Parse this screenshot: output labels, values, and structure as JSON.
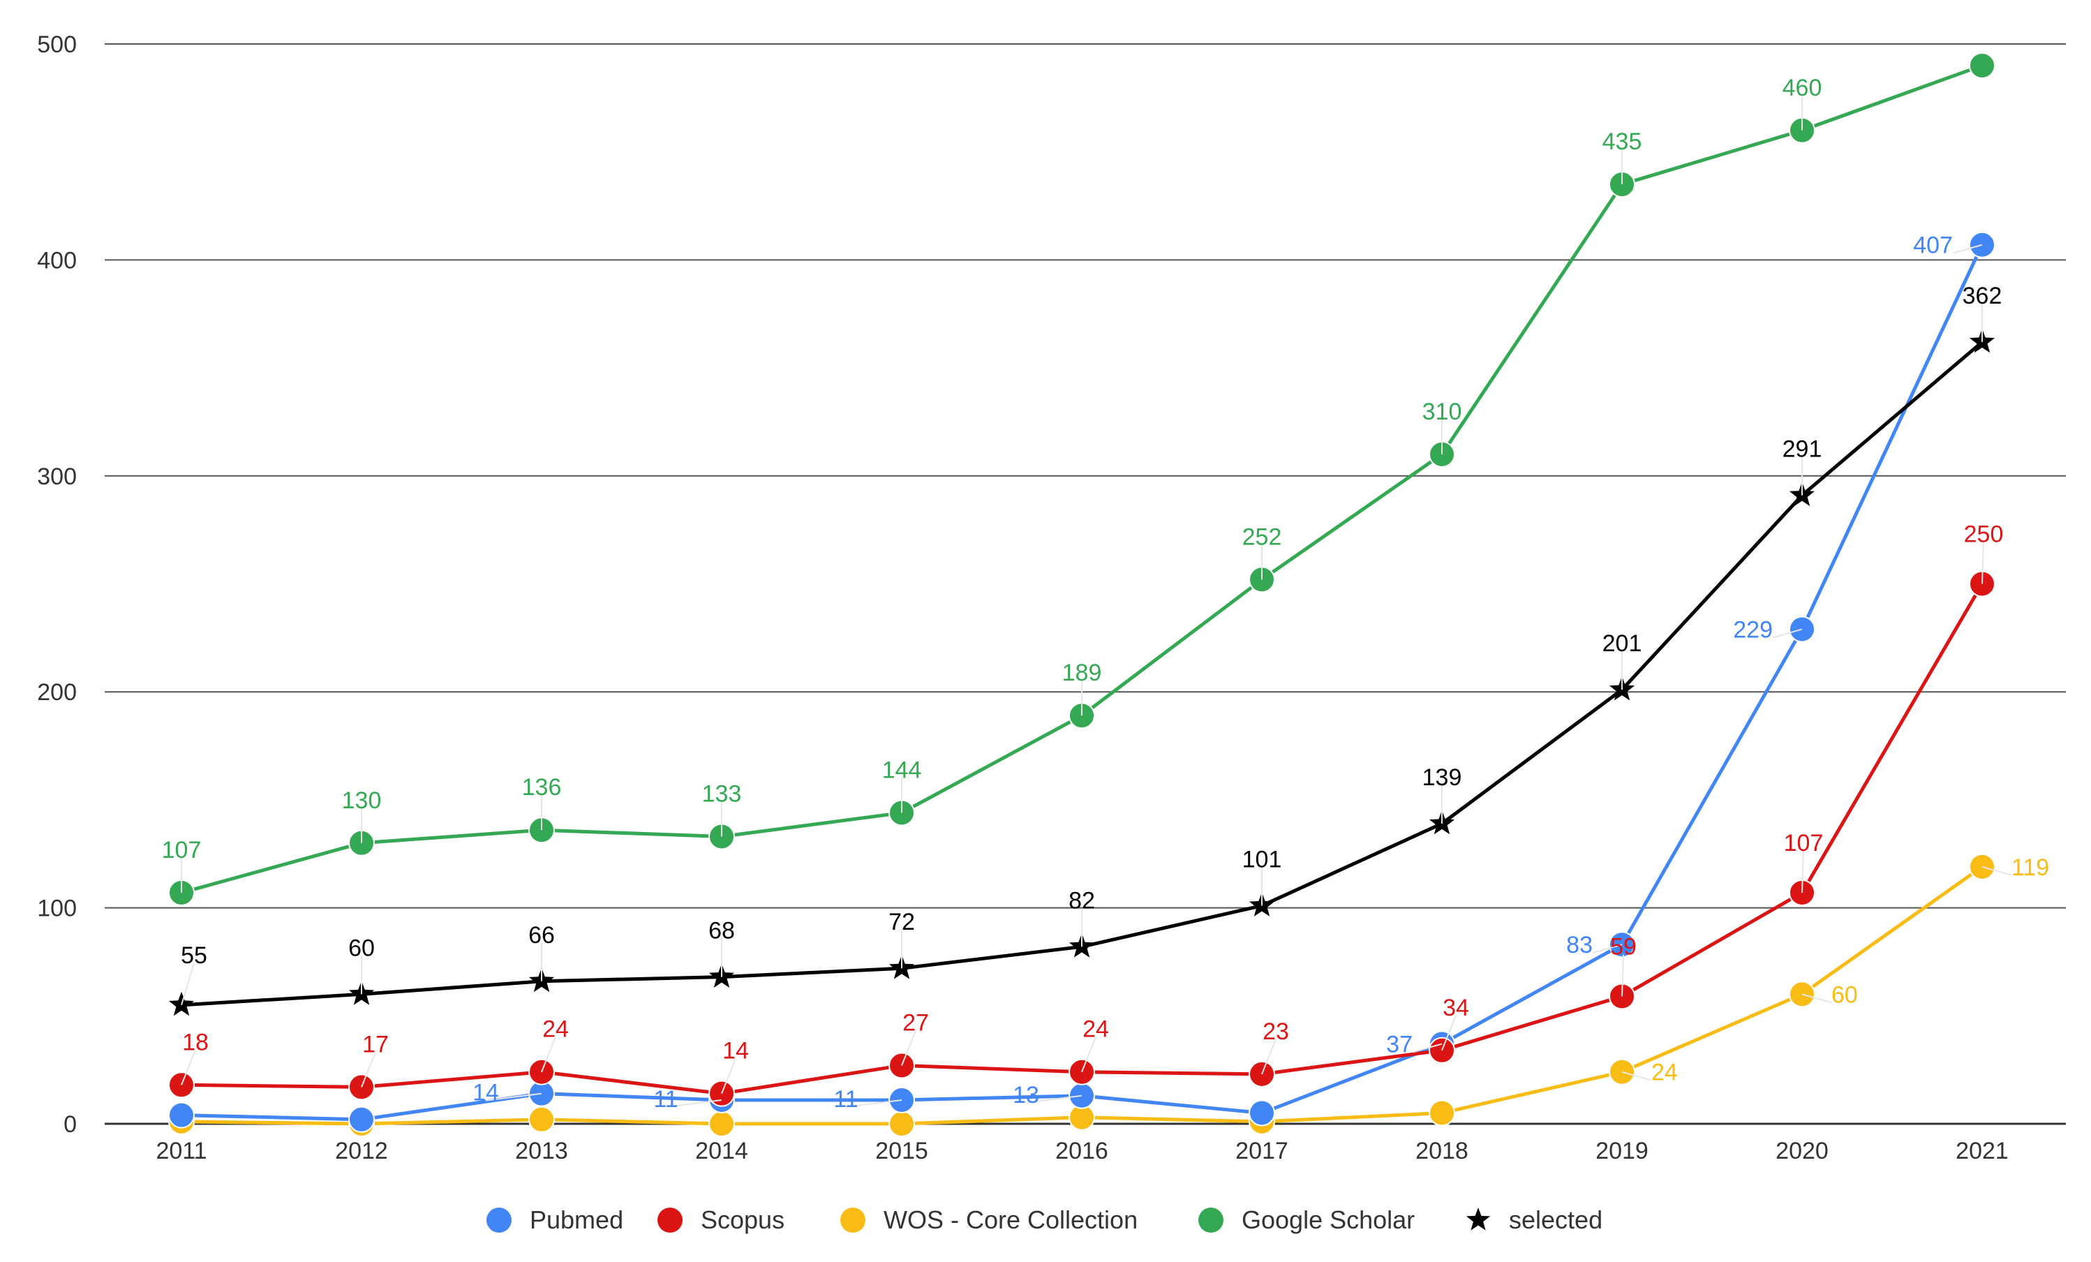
{
  "chart_data": {
    "type": "line",
    "title": "",
    "xlabel": "",
    "ylabel": "",
    "categories": [
      "2011",
      "2012",
      "2013",
      "2014",
      "2015",
      "2016",
      "2017",
      "2018",
      "2019",
      "2020",
      "2021"
    ],
    "ylim": [
      0,
      500
    ],
    "yticks": [
      0,
      100,
      200,
      300,
      400,
      500
    ],
    "grid": true,
    "legend_position": "bottom",
    "series": [
      {
        "name": "Pubmed",
        "color": "#4285F4",
        "marker": "circle",
        "values": [
          4,
          2,
          14,
          11,
          11,
          13,
          5,
          37,
          83,
          229,
          407
        ],
        "labels": [
          "",
          "",
          "14",
          "11",
          "11",
          "13",
          "",
          "37",
          "83",
          "229",
          "407"
        ]
      },
      {
        "name": "Scopus",
        "color": "#DB1414",
        "marker": "circle",
        "values": [
          18,
          17,
          24,
          14,
          27,
          24,
          23,
          34,
          59,
          107,
          250
        ],
        "labels": [
          "18",
          "17",
          "24",
          "14",
          "27",
          "24",
          "23",
          "34",
          "59",
          "107",
          "250"
        ]
      },
      {
        "name": "WOS  - Core Collection",
        "color": "#F9BC15",
        "marker": "circle",
        "values": [
          1,
          0,
          2,
          0,
          0,
          3,
          1,
          5,
          24,
          60,
          119
        ],
        "labels": [
          "",
          "",
          "",
          "",
          "",
          "",
          "",
          "",
          "24",
          "60",
          "119"
        ]
      },
      {
        "name": "Google Scholar",
        "color": "#34A853",
        "marker": "circle",
        "values": [
          107,
          130,
          136,
          133,
          144,
          189,
          252,
          310,
          435,
          460,
          490
        ],
        "labels": [
          "107",
          "130",
          "136",
          "133",
          "144",
          "189",
          "252",
          "310",
          "435",
          "460",
          ""
        ]
      },
      {
        "name": "selected",
        "color": "#000000",
        "marker": "star",
        "values": [
          55,
          60,
          66,
          68,
          72,
          82,
          101,
          139,
          201,
          291,
          362
        ],
        "labels": [
          "55",
          "60",
          "66",
          "68",
          "72",
          "82",
          "101",
          "139",
          "201",
          "291",
          "362"
        ]
      }
    ]
  }
}
